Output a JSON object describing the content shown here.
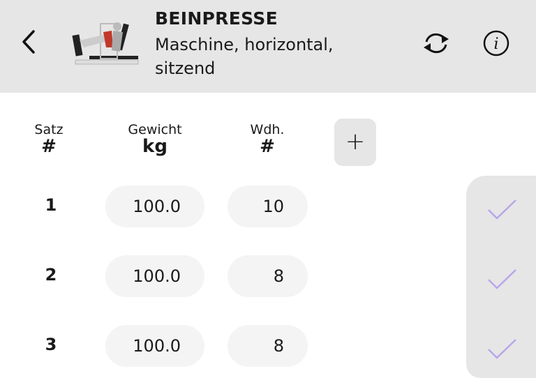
{
  "header": {
    "title": "BEINPRESSE",
    "subtitle": "Maschine, horizontal, sitzend",
    "icons": [
      "chevron-left-icon",
      "exercise-image",
      "sync-icon",
      "info-icon"
    ]
  },
  "columns": {
    "set": {
      "label": "Satz",
      "unit": "#"
    },
    "weight": {
      "label": "Gewicht",
      "unit": "kg"
    },
    "reps": {
      "label": "Wdh.",
      "unit": "#"
    },
    "add_label": "+"
  },
  "sets": [
    {
      "number": "1",
      "weight": "100.0",
      "reps": "10",
      "done": true
    },
    {
      "number": "2",
      "weight": "100.0",
      "reps": "8",
      "done": true
    },
    {
      "number": "3",
      "weight": "100.0",
      "reps": "8",
      "done": true
    }
  ],
  "colors": {
    "check": "#b9a6ea",
    "panel": "#e6e6e6",
    "header": "#e6e6e6"
  }
}
